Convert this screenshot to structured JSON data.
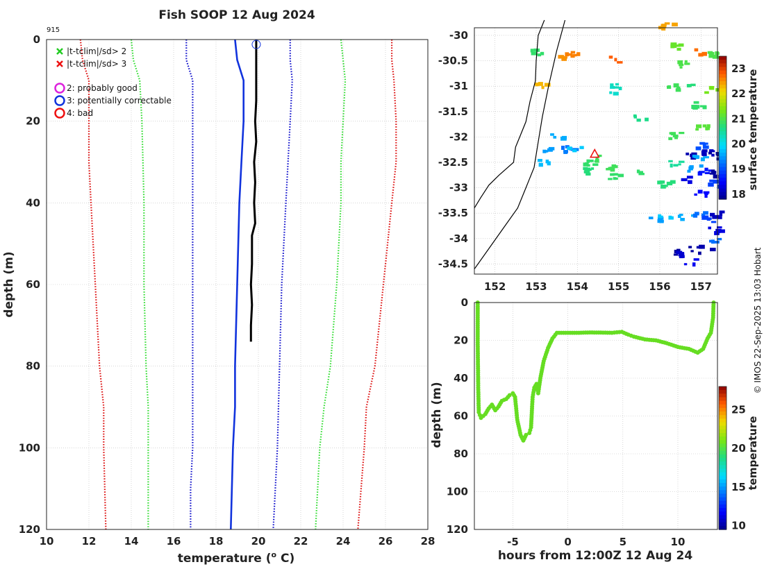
{
  "title": "Fish SOOP 12 Aug 2024",
  "profile_id": "915",
  "credit": "© IMOS 22-Sep-2025 13:03 Hobart",
  "legend": {
    "flag_items": [
      {
        "label": "|t-tclim|/sd> 2",
        "color": "#22cc22",
        "marker": "x"
      },
      {
        "label": "|t-tclim|/sd> 3",
        "color": "#ee1111",
        "marker": "x"
      }
    ],
    "qc_items": [
      {
        "label": "2: probably good",
        "color": "#dd22dd",
        "marker": "o"
      },
      {
        "label": "3: potentially correctable",
        "color": "#1133dd",
        "marker": "o"
      },
      {
        "label": "4: bad",
        "color": "#ee1111",
        "marker": "o"
      }
    ]
  },
  "chart_data": [
    {
      "id": "profile",
      "type": "line",
      "xlabel": "temperature (° C)",
      "xlabel_text": "temperature (",
      "xlabel_sup": "o",
      "xlabel_end": " C)",
      "ylabel": "depth (m)",
      "xlim": [
        10,
        28
      ],
      "ylim": [
        0,
        120
      ],
      "xticks": [
        10,
        12,
        14,
        16,
        18,
        20,
        22,
        24,
        26,
        28
      ],
      "yticks": [
        0,
        20,
        40,
        60,
        80,
        100,
        120
      ],
      "grid": true,
      "series": [
        {
          "name": "clim -3sd",
          "color": "#dd1111",
          "style": "dotted",
          "points": [
            [
              11.6,
              0
            ],
            [
              11.7,
              5
            ],
            [
              12.0,
              10
            ],
            [
              12.0,
              20
            ],
            [
              12.0,
              30
            ],
            [
              12.1,
              40
            ],
            [
              12.3,
              60
            ],
            [
              12.5,
              80
            ],
            [
              12.7,
              90
            ],
            [
              12.7,
              100
            ],
            [
              12.8,
              120
            ]
          ]
        },
        {
          "name": "clim -2sd",
          "color": "#33dd33",
          "style": "dotted",
          "points": [
            [
              14.0,
              0
            ],
            [
              14.1,
              5
            ],
            [
              14.4,
              10
            ],
            [
              14.5,
              20
            ],
            [
              14.6,
              40
            ],
            [
              14.6,
              60
            ],
            [
              14.7,
              80
            ],
            [
              14.8,
              90
            ],
            [
              14.8,
              100
            ],
            [
              14.8,
              120
            ]
          ]
        },
        {
          "name": "clim -1sd",
          "color": "#1111cc",
          "style": "dotted",
          "points": [
            [
              16.6,
              0
            ],
            [
              16.6,
              5
            ],
            [
              16.9,
              10
            ],
            [
              16.9,
              20
            ],
            [
              16.9,
              40
            ],
            [
              16.9,
              60
            ],
            [
              16.9,
              80
            ],
            [
              16.9,
              100
            ],
            [
              16.8,
              110
            ],
            [
              16.8,
              120
            ]
          ]
        },
        {
          "name": "clim mean",
          "color": "#1133dd",
          "style": "solid",
          "points": [
            [
              18.9,
              0
            ],
            [
              19.0,
              5
            ],
            [
              19.3,
              10
            ],
            [
              19.3,
              20
            ],
            [
              19.2,
              30
            ],
            [
              19.1,
              40
            ],
            [
              19.0,
              60
            ],
            [
              18.9,
              80
            ],
            [
              18.9,
              90
            ],
            [
              18.8,
              100
            ],
            [
              18.7,
              120
            ]
          ]
        },
        {
          "name": "clim +1sd",
          "color": "#1111cc",
          "style": "dotted",
          "points": [
            [
              21.5,
              0
            ],
            [
              21.5,
              5
            ],
            [
              21.6,
              10
            ],
            [
              21.5,
              20
            ],
            [
              21.4,
              30
            ],
            [
              21.3,
              40
            ],
            [
              21.1,
              60
            ],
            [
              21.0,
              80
            ],
            [
              20.9,
              100
            ],
            [
              20.7,
              120
            ]
          ]
        },
        {
          "name": "clim +2sd",
          "color": "#33dd33",
          "style": "dotted",
          "points": [
            [
              23.9,
              0
            ],
            [
              24.0,
              5
            ],
            [
              24.1,
              10
            ],
            [
              24.0,
              20
            ],
            [
              23.9,
              30
            ],
            [
              23.9,
              40
            ],
            [
              23.7,
              60
            ],
            [
              23.4,
              80
            ],
            [
              23.1,
              90
            ],
            [
              22.9,
              100
            ],
            [
              22.7,
              120
            ]
          ]
        },
        {
          "name": "clim +3sd",
          "color": "#dd1111",
          "style": "dotted",
          "points": [
            [
              26.3,
              0
            ],
            [
              26.3,
              5
            ],
            [
              26.4,
              10
            ],
            [
              26.5,
              20
            ],
            [
              26.5,
              30
            ],
            [
              26.3,
              40
            ],
            [
              25.9,
              60
            ],
            [
              25.5,
              80
            ],
            [
              25.1,
              90
            ],
            [
              25.0,
              100
            ],
            [
              24.7,
              120
            ]
          ]
        },
        {
          "name": "observed",
          "color": "#000000",
          "style": "thick",
          "points": [
            [
              19.9,
              0
            ],
            [
              19.9,
              5
            ],
            [
              19.9,
              10
            ],
            [
              19.9,
              15
            ],
            [
              19.85,
              20
            ],
            [
              19.9,
              25
            ],
            [
              19.8,
              30
            ],
            [
              19.85,
              35
            ],
            [
              19.8,
              40
            ],
            [
              19.85,
              45
            ],
            [
              19.7,
              48
            ],
            [
              19.7,
              55
            ],
            [
              19.65,
              60
            ],
            [
              19.7,
              65
            ],
            [
              19.65,
              70
            ],
            [
              19.65,
              74
            ]
          ]
        }
      ],
      "markers": [
        {
          "x": 19.9,
          "y": 1.2,
          "shape": "circle",
          "color": "#1133dd"
        }
      ]
    },
    {
      "id": "map",
      "type": "heatmap",
      "xlim": [
        151.5,
        157.4
      ],
      "ylim": [
        -34.7,
        -29.85
      ],
      "xticks": [
        152,
        153,
        154,
        155,
        156,
        157
      ],
      "yticks": [
        -30,
        -30.5,
        -31,
        -31.5,
        -32,
        -32.5,
        -33,
        -33.5,
        -34,
        -34.5
      ],
      "ytick_labels": [
        "-30",
        "-30.5",
        "-31",
        "-31.5",
        "-32",
        "-32.5",
        "-33",
        "-33.5",
        "-34",
        "-34.5"
      ],
      "colorbar_label": "surface temperature",
      "colorbar_range": [
        17.8,
        23.5
      ],
      "colorbar_ticks": [
        18,
        19,
        20,
        21,
        22,
        23
      ],
      "position_marker": {
        "lon": 154.42,
        "lat": -32.33
      },
      "patches": [
        {
          "lon": 153.3,
          "lat": -32.25,
          "t": 19.5
        },
        {
          "lon": 153.55,
          "lat": -32.2,
          "t": 19.2
        },
        {
          "lon": 153.75,
          "lat": -32.25,
          "t": 19.3
        },
        {
          "lon": 153.9,
          "lat": -32.2,
          "t": 19.8
        },
        {
          "lon": 153.5,
          "lat": -31.95,
          "t": 19.6
        },
        {
          "lon": 153.2,
          "lat": -32.45,
          "t": 19.7
        },
        {
          "lon": 154.3,
          "lat": -32.5,
          "t": 20.8
        },
        {
          "lon": 154.45,
          "lat": -32.4,
          "t": 20.9
        },
        {
          "lon": 154.2,
          "lat": -32.65,
          "t": 20.7
        },
        {
          "lon": 154.7,
          "lat": -32.55,
          "t": 20.9
        },
        {
          "lon": 154.9,
          "lat": -32.75,
          "t": 20.8
        },
        {
          "lon": 155.5,
          "lat": -32.7,
          "t": 20.8
        },
        {
          "lon": 153.05,
          "lat": -30.95,
          "t": 22.3
        },
        {
          "lon": 153.0,
          "lat": -30.3,
          "t": 20.8
        },
        {
          "lon": 153.65,
          "lat": -30.4,
          "t": 22.5
        },
        {
          "lon": 153.85,
          "lat": -30.35,
          "t": 22.6
        },
        {
          "lon": 154.9,
          "lat": -30.45,
          "t": 22.8
        },
        {
          "lon": 154.75,
          "lat": -31.05,
          "t": 20.2
        },
        {
          "lon": 154.85,
          "lat": -31.0,
          "t": 20.3
        },
        {
          "lon": 155.5,
          "lat": -31.6,
          "t": 20.6
        },
        {
          "lon": 156.05,
          "lat": -29.78,
          "t": 22.4
        },
        {
          "lon": 156.2,
          "lat": -29.8,
          "t": 22.4
        },
        {
          "lon": 156.35,
          "lat": -30.2,
          "t": 21.2
        },
        {
          "lon": 156.55,
          "lat": -30.55,
          "t": 21.0
        },
        {
          "lon": 157.0,
          "lat": -30.3,
          "t": 22.7
        },
        {
          "lon": 157.25,
          "lat": -30.35,
          "t": 21.0
        },
        {
          "lon": 156.3,
          "lat": -31.0,
          "t": 20.9
        },
        {
          "lon": 156.8,
          "lat": -31.0,
          "t": 20.7
        },
        {
          "lon": 157.2,
          "lat": -31.05,
          "t": 21.3
        },
        {
          "lon": 156.9,
          "lat": -31.35,
          "t": 20.8
        },
        {
          "lon": 157.0,
          "lat": -31.8,
          "t": 21.1
        },
        {
          "lon": 156.3,
          "lat": -31.95,
          "t": 20.9
        },
        {
          "lon": 156.9,
          "lat": -32.15,
          "t": 19.0
        },
        {
          "lon": 156.7,
          "lat": -32.35,
          "t": 18.0
        },
        {
          "lon": 156.9,
          "lat": -32.35,
          "t": 19.6
        },
        {
          "lon": 157.1,
          "lat": -32.3,
          "t": 18.1
        },
        {
          "lon": 157.3,
          "lat": -32.35,
          "t": 17.9
        },
        {
          "lon": 156.8,
          "lat": -32.6,
          "t": 19.5
        },
        {
          "lon": 157.05,
          "lat": -32.65,
          "t": 18.6
        },
        {
          "lon": 157.3,
          "lat": -32.7,
          "t": 17.9
        },
        {
          "lon": 156.3,
          "lat": -32.5,
          "t": 20.5
        },
        {
          "lon": 156.6,
          "lat": -32.8,
          "t": 18.3
        },
        {
          "lon": 156.1,
          "lat": -32.9,
          "t": 20.7
        },
        {
          "lon": 156.95,
          "lat": -33.1,
          "t": 18.5
        },
        {
          "lon": 157.3,
          "lat": -32.9,
          "t": 18.9
        },
        {
          "lon": 155.85,
          "lat": -33.6,
          "t": 19.5
        },
        {
          "lon": 156.1,
          "lat": -33.55,
          "t": 19.8
        },
        {
          "lon": 156.6,
          "lat": -33.55,
          "t": 19.6
        },
        {
          "lon": 156.9,
          "lat": -33.45,
          "t": 19.2
        },
        {
          "lon": 157.15,
          "lat": -33.6,
          "t": 18.9
        },
        {
          "lon": 157.3,
          "lat": -33.5,
          "t": 18.1
        },
        {
          "lon": 157.3,
          "lat": -33.8,
          "t": 18.3
        },
        {
          "lon": 156.3,
          "lat": -34.25,
          "t": 17.9
        },
        {
          "lon": 156.55,
          "lat": -34.3,
          "t": 18.2
        },
        {
          "lon": 156.8,
          "lat": -34.2,
          "t": 17.9
        },
        {
          "lon": 157.05,
          "lat": -34.15,
          "t": 18.0
        },
        {
          "lon": 156.7,
          "lat": -34.45,
          "t": 18.4
        },
        {
          "lon": 157.25,
          "lat": -34.05,
          "t": 19.2
        }
      ]
    },
    {
      "id": "depth_time",
      "type": "scatter",
      "xlabel": "hours from 12:00Z 12 Aug 24",
      "ylabel": "depth (m)",
      "xlim": [
        -8.5,
        13.6
      ],
      "ylim": [
        0,
        120
      ],
      "xticks": [
        -5,
        0,
        5,
        10
      ],
      "yticks": [
        0,
        20,
        40,
        60,
        80,
        100,
        120
      ],
      "colorbar_label": "temperature",
      "colorbar_range": [
        9.5,
        28
      ],
      "colorbar_ticks": [
        10,
        15,
        20,
        25
      ],
      "color": "#66dd22",
      "points": [
        [
          -8.2,
          0
        ],
        [
          -8.2,
          20
        ],
        [
          -8.15,
          45
        ],
        [
          -8.1,
          58
        ],
        [
          -7.9,
          61
        ],
        [
          -7.5,
          59
        ],
        [
          -7.2,
          56
        ],
        [
          -6.9,
          54
        ],
        [
          -6.6,
          57
        ],
        [
          -6.3,
          55
        ],
        [
          -6.0,
          52
        ],
        [
          -5.6,
          51
        ],
        [
          -5.3,
          49
        ],
        [
          -5.0,
          48
        ],
        [
          -4.8,
          50
        ],
        [
          -4.6,
          62
        ],
        [
          -4.3,
          70
        ],
        [
          -4.05,
          73
        ],
        [
          -3.8,
          70
        ],
        [
          -3.5,
          69
        ],
        [
          -3.35,
          66
        ],
        [
          -3.25,
          55
        ],
        [
          -3.2,
          50
        ],
        [
          -3.05,
          45
        ],
        [
          -2.85,
          43
        ],
        [
          -2.7,
          48
        ],
        [
          -2.5,
          40
        ],
        [
          -2.2,
          31
        ],
        [
          -1.8,
          24
        ],
        [
          -1.4,
          19
        ],
        [
          -1.0,
          16
        ],
        [
          0,
          16
        ],
        [
          1,
          16
        ],
        [
          2,
          15.8
        ],
        [
          3,
          15.9
        ],
        [
          4,
          16
        ],
        [
          4.9,
          15.5
        ],
        [
          5.5,
          17
        ],
        [
          6,
          18
        ],
        [
          7,
          19.5
        ],
        [
          8,
          20
        ],
        [
          9,
          21.5
        ],
        [
          10,
          23.5
        ],
        [
          11,
          24.5
        ],
        [
          11.8,
          26.5
        ],
        [
          12.3,
          24.5
        ],
        [
          12.7,
          19
        ],
        [
          13.0,
          16
        ],
        [
          13.2,
          8
        ],
        [
          13.25,
          0
        ]
      ]
    }
  ]
}
